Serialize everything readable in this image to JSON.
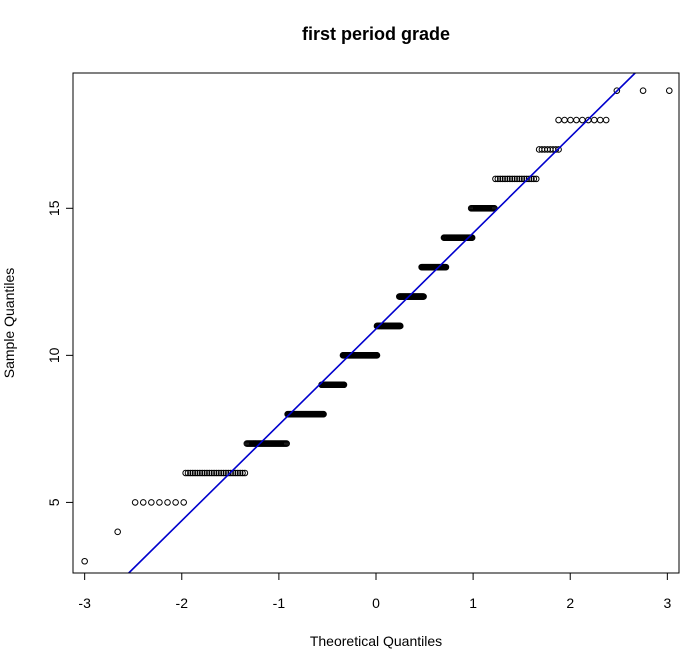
{
  "chart_data": {
    "type": "scatter",
    "subtype": "normal-qq-plot",
    "title": "first period grade",
    "xlabel": "Theoretical Quantiles",
    "ylabel": "Sample Quantiles",
    "xlim": [
      -3.12,
      3.12
    ],
    "ylim": [
      2.6,
      19.6
    ],
    "x_ticks": [
      -3,
      -2,
      -1,
      0,
      1,
      2,
      3
    ],
    "y_ticks": [
      5,
      10,
      15
    ],
    "grid": false,
    "legend": "none",
    "point_style": "open-circle",
    "point_color": "#000000",
    "reference_line": {
      "color": "#0000cd",
      "intercept": 10.9,
      "slope": 3.26
    },
    "groups": [
      {
        "y": 3,
        "x_min": -3.0,
        "x_max": -3.0,
        "n": 1
      },
      {
        "y": 4,
        "x_min": -2.66,
        "x_max": -2.66,
        "n": 1
      },
      {
        "y": 5,
        "x_min": -2.48,
        "x_max": -1.98,
        "n": 7
      },
      {
        "y": 6,
        "x_min": -1.96,
        "x_max": -1.35,
        "n": 26
      },
      {
        "y": 7,
        "x_min": -1.33,
        "x_max": -0.92,
        "n": 40
      },
      {
        "y": 8,
        "x_min": -0.91,
        "x_max": -0.54,
        "n": 55
      },
      {
        "y": 9,
        "x_min": -0.56,
        "x_max": -0.33,
        "n": 40
      },
      {
        "y": 10,
        "x_min": -0.34,
        "x_max": 0.01,
        "n": 70
      },
      {
        "y": 11,
        "x_min": 0.01,
        "x_max": 0.25,
        "n": 45
      },
      {
        "y": 12,
        "x_min": 0.24,
        "x_max": 0.49,
        "n": 45
      },
      {
        "y": 13,
        "x_min": 0.47,
        "x_max": 0.72,
        "n": 42
      },
      {
        "y": 14,
        "x_min": 0.7,
        "x_max": 0.99,
        "n": 40
      },
      {
        "y": 15,
        "x_min": 0.98,
        "x_max": 1.22,
        "n": 25
      },
      {
        "y": 16,
        "x_min": 1.23,
        "x_max": 1.65,
        "n": 18
      },
      {
        "y": 17,
        "x_min": 1.68,
        "x_max": 1.88,
        "n": 8
      },
      {
        "y": 18,
        "x_min": 1.88,
        "x_max": 2.37,
        "n": 9
      },
      {
        "y": 19,
        "x_min": 2.48,
        "x_max": 3.02,
        "n": 3
      }
    ]
  }
}
